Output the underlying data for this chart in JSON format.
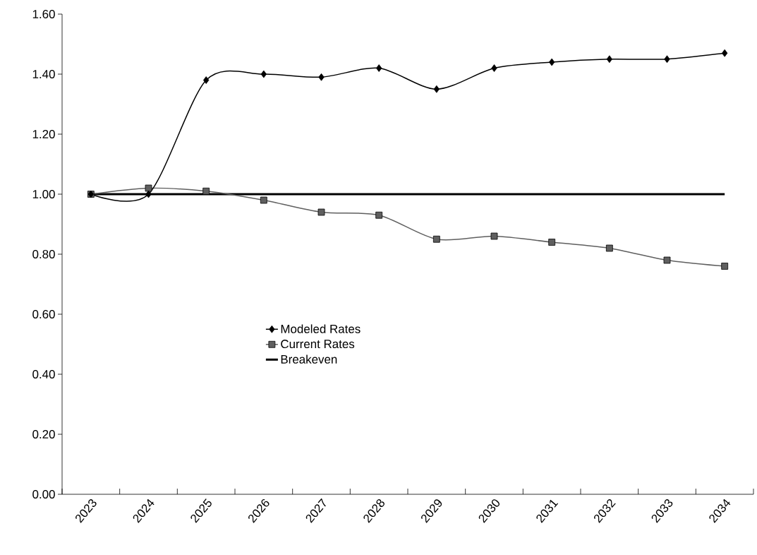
{
  "chart_data": {
    "type": "line",
    "categories": [
      "2023",
      "2024",
      "2025",
      "2026",
      "2027",
      "2028",
      "2029",
      "2030",
      "2031",
      "2032",
      "2033",
      "2034"
    ],
    "series": [
      {
        "name": "Modeled Rates",
        "color": "#000000",
        "marker": "diamond",
        "values": [
          1.0,
          1.0,
          1.38,
          1.4,
          1.39,
          1.42,
          1.35,
          1.42,
          1.44,
          1.45,
          1.45,
          1.47
        ]
      },
      {
        "name": "Current Rates",
        "color": "#5f5f5f",
        "marker": "square",
        "values": [
          1.0,
          1.02,
          1.01,
          0.98,
          0.94,
          0.93,
          0.85,
          0.86,
          0.84,
          0.82,
          0.78,
          0.76
        ]
      },
      {
        "name": "Breakeven",
        "color": "#000000",
        "marker": "none",
        "values": [
          1.0,
          1.0,
          1.0,
          1.0,
          1.0,
          1.0,
          1.0,
          1.0,
          1.0,
          1.0,
          1.0,
          1.0
        ]
      }
    ],
    "ylim": [
      0,
      1.6
    ],
    "yticks": [
      {
        "value": 0,
        "label": "0.00"
      },
      {
        "value": 0.2,
        "label": "0.20"
      },
      {
        "value": 0.4,
        "label": "0.40"
      },
      {
        "value": 0.6,
        "label": "0.60"
      },
      {
        "value": 0.8,
        "label": "0.80"
      },
      {
        "value": 1.0,
        "label": "1.00"
      },
      {
        "value": 1.2,
        "label": "1.20"
      },
      {
        "value": 1.4,
        "label": "1.40"
      },
      {
        "value": 1.6,
        "label": "1.60"
      }
    ],
    "legend": "center",
    "grid": false
  }
}
